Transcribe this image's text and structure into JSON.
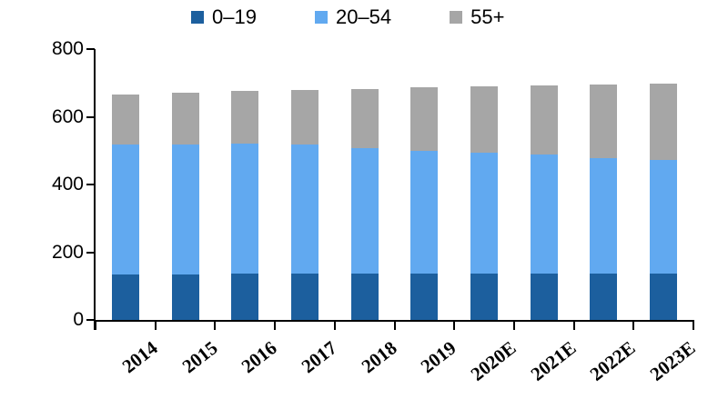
{
  "chart_data": {
    "type": "bar",
    "stacked": true,
    "title": "",
    "xlabel": "",
    "ylabel": "",
    "categories": [
      "2014",
      "2015",
      "2016",
      "2017",
      "2018",
      "2019",
      "2020E",
      "2021E",
      "2022E",
      "2023E"
    ],
    "series": [
      {
        "name": "0–19",
        "color": "#1C5F9E",
        "values": [
          135,
          135,
          136,
          136,
          136,
          136,
          137,
          137,
          137,
          137
        ]
      },
      {
        "name": "20–54",
        "color": "#61A9F0",
        "values": [
          384,
          384,
          385,
          383,
          372,
          364,
          357,
          351,
          342,
          336
        ]
      },
      {
        "name": "55+",
        "color": "#A6A6A6",
        "values": [
          147,
          152,
          156,
          161,
          174,
          186,
          195,
          204,
          216,
          225
        ]
      }
    ],
    "totals": [
      666,
      671,
      677,
      680,
      682,
      686,
      689,
      692,
      695,
      698
    ],
    "ylim": [
      0,
      800
    ],
    "yticks": [
      0,
      200,
      400,
      600,
      800
    ],
    "legend_position": "top",
    "grid": false,
    "axis_color": "#000000",
    "background_color": "#ffffff"
  }
}
